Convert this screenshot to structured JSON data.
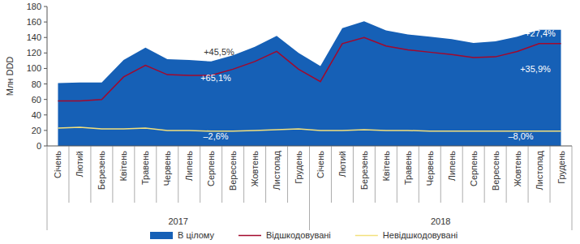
{
  "chart_data": {
    "type": "area",
    "y_label": "Млн DDD",
    "categories": [
      "Січень",
      "Лютий",
      "Березень",
      "Квітень",
      "Травень",
      "Червень",
      "Липень",
      "Серпень",
      "Вересень",
      "Жовтень",
      "Листопад",
      "Грудень",
      "Січень",
      "Лютий",
      "Березень",
      "Квітень",
      "Травень",
      "Червень",
      "Липень",
      "Серпень",
      "Вересень",
      "Жовтень",
      "Листопад",
      "Грудень"
    ],
    "x_groups": [
      "2017",
      "2018"
    ],
    "series": [
      {
        "name": "В цілому",
        "type": "area",
        "color": "#1660b6",
        "values": [
          81,
          82,
          82,
          111,
          127,
          112,
          111,
          109,
          117,
          128,
          142,
          120,
          103,
          152,
          161,
          149,
          144,
          141,
          138,
          133,
          135,
          141,
          150,
          150
        ]
      },
      {
        "name": "Відшкодовувані",
        "type": "line",
        "color": "#a3082c",
        "values": [
          58,
          58,
          60,
          89,
          104,
          92,
          91,
          91,
          99,
          109,
          122,
          99,
          83,
          132,
          140,
          129,
          124,
          121,
          118,
          114,
          115,
          122,
          132,
          132
        ]
      },
      {
        "name": "Невідшкодовувані",
        "type": "line",
        "color": "#f3e07c",
        "values": [
          23,
          24,
          22,
          22,
          23,
          20,
          20,
          19,
          19,
          20,
          21,
          22,
          20,
          20,
          21,
          20,
          20,
          19,
          19,
          19,
          19,
          19,
          19,
          19
        ]
      }
    ],
    "annotations": [
      {
        "text": "+45,5%"
      },
      {
        "text": "+65,1%"
      },
      {
        "text": "–2,6%"
      },
      {
        "text": "+27,4%"
      },
      {
        "text": "+35,9%"
      },
      {
        "text": "–8,0%"
      }
    ],
    "ylim": [
      0,
      180
    ],
    "yticks": [
      0,
      20,
      40,
      60,
      80,
      100,
      120,
      140,
      160,
      180
    ],
    "grid": false,
    "legend": "bottom"
  }
}
